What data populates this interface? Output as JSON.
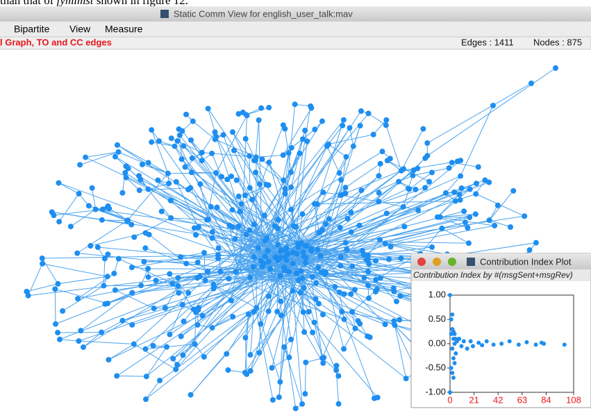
{
  "doc_text": {
    "before": "than that of ",
    "italic": "fymimst",
    "after": " shown in figure 12."
  },
  "window": {
    "title": "Static Comm View for english_user_talk:mav",
    "menu": [
      "Bipartite",
      "View",
      "Measure"
    ],
    "status": {
      "left": "l Graph,  TO and CC edges",
      "edges": "Edges : 1411",
      "nodes": "Nodes : 875"
    }
  },
  "plot_window": {
    "title": "Contribution Index Plot",
    "chart_data": {
      "type": "scatter",
      "title": "Contribution Index by #(msgSent+msgRev)",
      "color": "#1e8ef0",
      "x": [
        0,
        0,
        1,
        1,
        1,
        2,
        2,
        2,
        2,
        3,
        3,
        3,
        3,
        4,
        4,
        4,
        5,
        5,
        6,
        8,
        10,
        12,
        15,
        18,
        20,
        25,
        28,
        32,
        38,
        45,
        52,
        60,
        67,
        75,
        80,
        82,
        100
      ],
      "values": [
        1,
        -1,
        0.5,
        0.2,
        -0.5,
        0.6,
        0.3,
        -0.1,
        -0.6,
        0.25,
        0.1,
        -0.3,
        -0.7,
        0.2,
        0,
        -0.4,
        0.1,
        -0.2,
        0.05,
        0.1,
        -0.05,
        0.05,
        -0.1,
        0.05,
        -0.05,
        0.02,
        -0.03,
        0.05,
        -0.02,
        0,
        0.05,
        -0.02,
        0.03,
        -0.02,
        0.02,
        0,
        -0.02
      ],
      "xlim": [
        0,
        108
      ],
      "ylim": [
        -1,
        1
      ],
      "xticks": [
        0,
        21,
        42,
        63,
        84,
        108
      ],
      "yticks": [
        {
          "value": 1,
          "label": "1.00"
        },
        {
          "value": 0.5,
          "label": "0.50"
        },
        {
          "value": 0,
          "label": "0.00"
        },
        {
          "value": -0.5,
          "label": "-0.50"
        },
        {
          "value": -1,
          "label": "-1.00"
        }
      ]
    }
  }
}
